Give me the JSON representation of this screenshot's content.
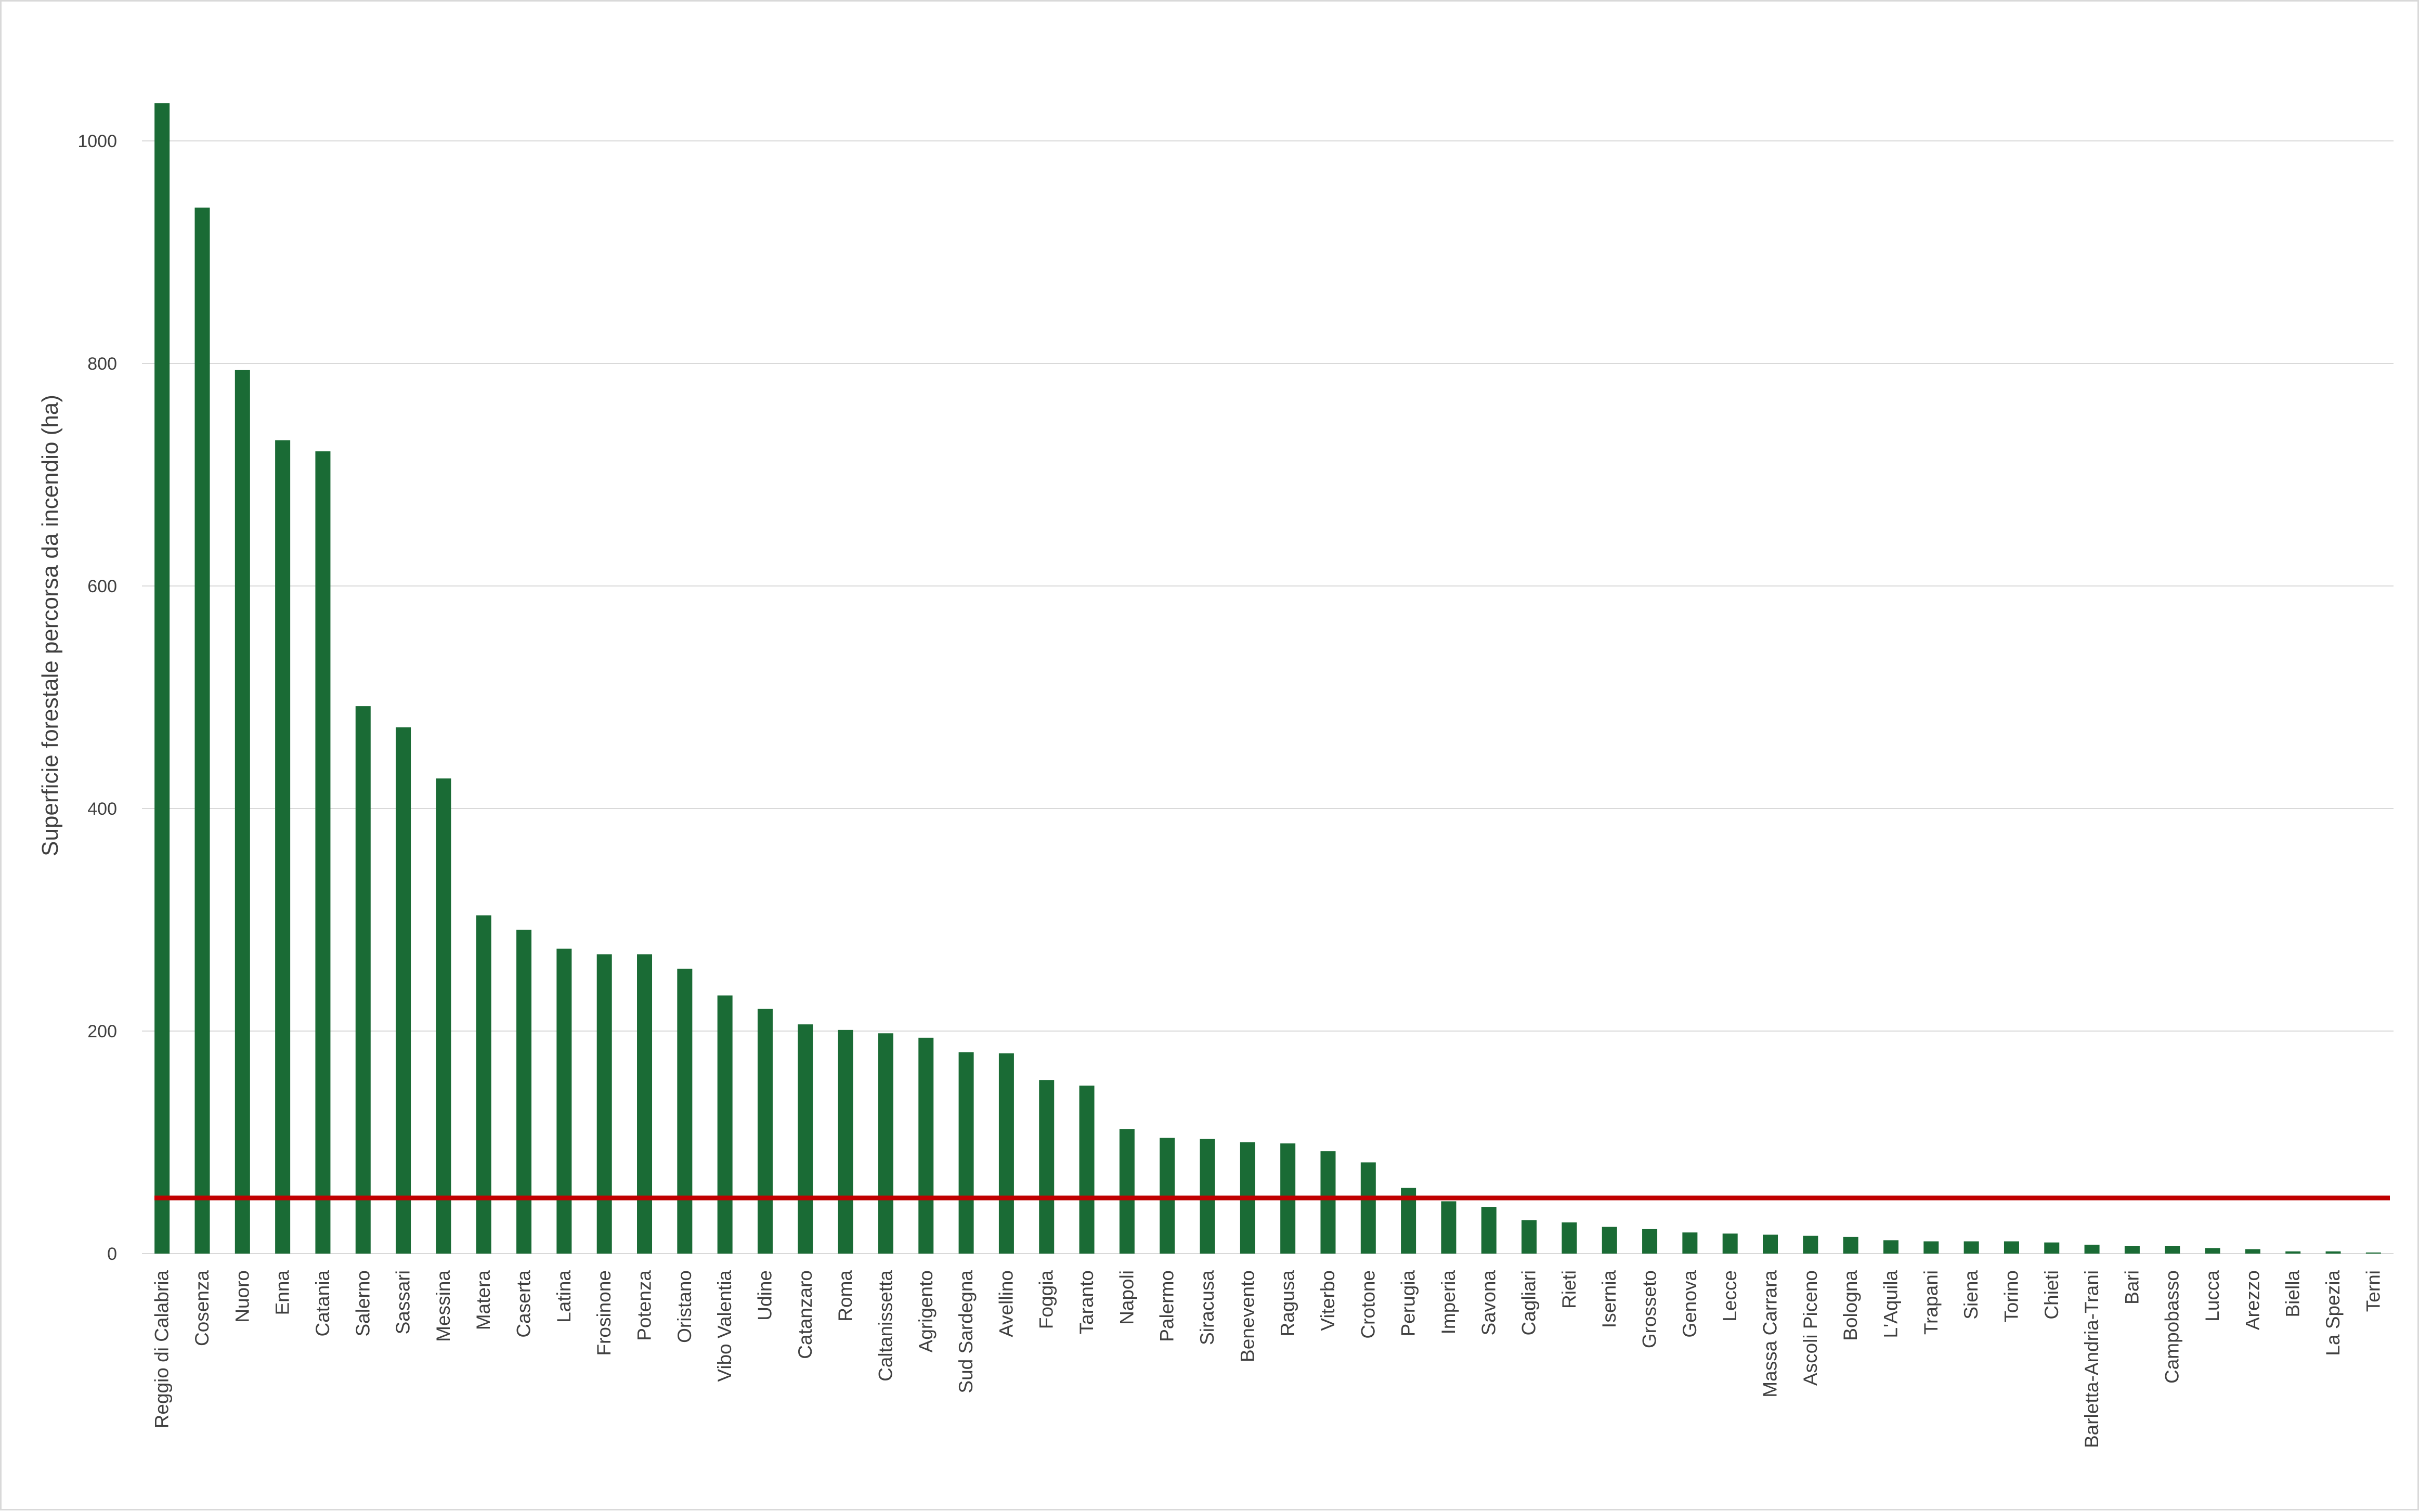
{
  "chart_data": {
    "type": "bar",
    "title": "",
    "xlabel": "",
    "ylabel": "Superficie forestale percorsa da incendio (ha)",
    "ylim": [
      0,
      1050
    ],
    "yticks": [
      0,
      200,
      400,
      600,
      800,
      1000
    ],
    "grid": true,
    "legend": "none",
    "categories": [
      "Reggio di Calabria",
      "Cosenza",
      "Nuoro",
      "Enna",
      "Catania",
      "Salerno",
      "Sassari",
      "Messina",
      "Matera",
      "Caserta",
      "Latina",
      "Frosinone",
      "Potenza",
      "Oristano",
      "Vibo Valentia",
      "Udine",
      "Catanzaro",
      "Roma",
      "Caltanissetta",
      "Agrigento",
      "Sud Sardegna",
      "Avellino",
      "Foggia",
      "Taranto",
      "Napoli",
      "Palermo",
      "Siracusa",
      "Benevento",
      "Ragusa",
      "Viterbo",
      "Crotone",
      "Perugia",
      "Imperia",
      "Savona",
      "Cagliari",
      "Rieti",
      "Isernia",
      "Grosseto",
      "Genova",
      "Lecce",
      "Massa Carrara",
      "Ascoli Piceno",
      "Bologna",
      "L'Aquila",
      "Trapani",
      "Siena",
      "Torino",
      "Chieti",
      "Barletta-Andria-Trani",
      "Bari",
      "Campobasso",
      "Lucca",
      "Arezzo",
      "Biella",
      "La Spezia",
      "Terni"
    ],
    "values": [
      1034,
      940,
      794,
      731,
      721,
      492,
      473,
      427,
      304,
      291,
      274,
      269,
      269,
      256,
      232,
      220,
      206,
      201,
      198,
      194,
      181,
      180,
      156,
      151,
      112,
      104,
      103,
      100,
      99,
      92,
      82,
      59,
      47,
      42,
      30,
      28,
      24,
      22,
      19,
      18,
      17,
      16,
      15,
      12,
      11,
      11,
      11,
      10,
      8,
      7,
      7,
      5,
      4,
      2,
      2,
      1
    ],
    "colors": {
      "bar": "#1a6b35",
      "reference_line": "#c00000",
      "grid": "#d9d9d9"
    },
    "reference_line": {
      "value": 50
    }
  }
}
